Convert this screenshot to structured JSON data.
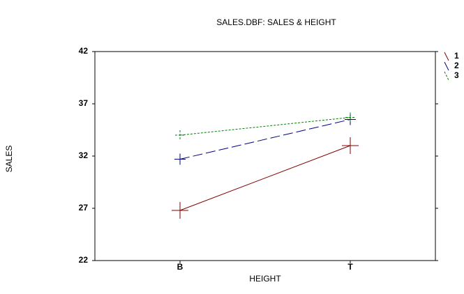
{
  "chart_data": {
    "type": "line",
    "title": "SALES.DBF: SALES & HEIGHT",
    "x_label": "HEIGHT",
    "y_label": "SALES",
    "categories": [
      "B",
      "T"
    ],
    "series": [
      {
        "name": "1",
        "color": "#800000",
        "values": [
          26.8,
          33.0
        ]
      },
      {
        "name": "2",
        "color": "#000080",
        "values": [
          31.7,
          35.5
        ]
      },
      {
        "name": "3",
        "color": "#008000",
        "values": [
          34.0,
          35.7
        ]
      }
    ],
    "ylim": [
      22,
      42
    ],
    "yticks": [
      22,
      27,
      32,
      37,
      42
    ],
    "grid": false,
    "legend": "top-right"
  }
}
